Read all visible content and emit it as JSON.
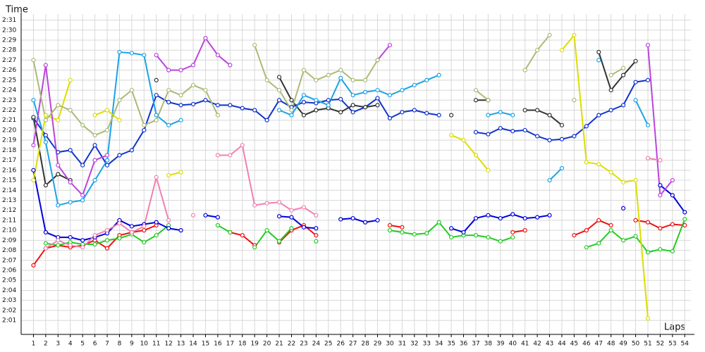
{
  "chart_data": {
    "type": "line",
    "y_title": "Time",
    "x_title": "Laps",
    "grid": true,
    "x": [
      1,
      2,
      3,
      4,
      5,
      6,
      7,
      8,
      9,
      10,
      11,
      12,
      13,
      14,
      15,
      16,
      17,
      18,
      19,
      20,
      21,
      22,
      23,
      24,
      25,
      26,
      27,
      28,
      29,
      30,
      31,
      32,
      33,
      34,
      35,
      36,
      37,
      38,
      39,
      40,
      41,
      42,
      43,
      44,
      45,
      46,
      47,
      48,
      49,
      50,
      51,
      52,
      53,
      54
    ],
    "xlim": [
      0,
      54.5
    ],
    "ylim": [
      119.6,
      151.6
    ],
    "yticks": [
      {
        "value": 121,
        "label": "2:01"
      },
      {
        "value": 122,
        "label": "2:02"
      },
      {
        "value": 123,
        "label": "2:03"
      },
      {
        "value": 124,
        "label": "2:04"
      },
      {
        "value": 125,
        "label": "2:05"
      },
      {
        "value": 126,
        "label": "2:06"
      },
      {
        "value": 127,
        "label": "2:07"
      },
      {
        "value": 128,
        "label": "2:08"
      },
      {
        "value": 129,
        "label": "2:09"
      },
      {
        "value": 130,
        "label": "2:10"
      },
      {
        "value": 131,
        "label": "2:11"
      },
      {
        "value": 132,
        "label": "2:12"
      },
      {
        "value": 133,
        "label": "2:13"
      },
      {
        "value": 134,
        "label": "2:14"
      },
      {
        "value": 135,
        "label": "2:15"
      },
      {
        "value": 136,
        "label": "2:16"
      },
      {
        "value": 137,
        "label": "2:17"
      },
      {
        "value": 138,
        "label": "2:18"
      },
      {
        "value": 139,
        "label": "2:19"
      },
      {
        "value": 140,
        "label": "2:20"
      },
      {
        "value": 141,
        "label": "2:21"
      },
      {
        "value": 142,
        "label": "2:22"
      },
      {
        "value": 143,
        "label": "2:23"
      },
      {
        "value": 144,
        "label": "2:24"
      },
      {
        "value": 145,
        "label": "2:25"
      },
      {
        "value": 146,
        "label": "2:26"
      },
      {
        "value": 147,
        "label": "2:27"
      },
      {
        "value": 148,
        "label": "2:28"
      },
      {
        "value": 149,
        "label": "2:29"
      },
      {
        "value": 150,
        "label": "2:30"
      },
      {
        "value": 151,
        "label": "2:31"
      }
    ],
    "series": [
      {
        "color": "#ee1111",
        "values": [
          126.5,
          128.2,
          128.5,
          128.3,
          128.5,
          129,
          128.2,
          129.5,
          129.8,
          130,
          130.5,
          null,
          null,
          null,
          null,
          null,
          129.8,
          129.5,
          128.5,
          null,
          128.8,
          130,
          130.5,
          129.5,
          null,
          null,
          null,
          null,
          null,
          130.5,
          130.3,
          null,
          null,
          null,
          null,
          null,
          null,
          null,
          null,
          129.8,
          130,
          null,
          null,
          null,
          129.5,
          130,
          131,
          130.5,
          null,
          131,
          130.8,
          130.2,
          130.6,
          130.5
        ]
      },
      {
        "color": "#22cc22",
        "values": [
          null,
          128.7,
          128.5,
          128.8,
          128.6,
          128.6,
          129,
          129.2,
          129.6,
          128.8,
          129.5,
          130.5,
          null,
          null,
          null,
          130.5,
          129.8,
          null,
          128.3,
          130,
          128.9,
          130.2,
          null,
          128.9,
          null,
          null,
          null,
          null,
          null,
          130,
          129.8,
          129.6,
          129.7,
          130.8,
          129.3,
          129.5,
          129.5,
          129.3,
          128.9,
          129.3,
          null,
          null,
          null,
          null,
          null,
          128.3,
          128.7,
          130,
          129,
          129.4,
          127.8,
          128.1,
          127.9,
          131.1
        ]
      },
      {
        "color": "#0000dd",
        "values": [
          136,
          129.8,
          129.3,
          129.3,
          129,
          129.3,
          129.7,
          131,
          130.4,
          130.6,
          130.8,
          130.2,
          130,
          null,
          131.5,
          131.3,
          null,
          null,
          null,
          null,
          131.4,
          131.3,
          130.3,
          130.2,
          null,
          131.1,
          131.2,
          130.8,
          131,
          null,
          null,
          null,
          null,
          null,
          130.2,
          129.8,
          131.2,
          131.5,
          131.2,
          131.6,
          131.2,
          131.3,
          131.5,
          null,
          null,
          null,
          null,
          null,
          132.2,
          null,
          null,
          134.5,
          133.5,
          131.8
        ]
      },
      {
        "color": "#1133cc",
        "values": [
          141.2,
          139.5,
          137.8,
          138,
          136.5,
          138.5,
          136.5,
          137.5,
          138,
          140,
          143.5,
          142.8,
          142.5,
          142.6,
          143,
          142.5,
          142.5,
          142.2,
          142,
          141,
          143,
          142.3,
          142.8,
          142.7,
          143,
          143.1,
          141.8,
          142.3,
          143.2,
          141.2,
          141.8,
          142,
          141.7,
          141.5,
          null,
          null,
          139.8,
          139.6,
          140.2,
          139.9,
          140,
          139.4,
          139,
          139.1,
          139.4,
          140.4,
          141.5,
          142,
          142.5,
          144.8,
          145,
          null,
          null,
          null
        ]
      },
      {
        "color": "#333333",
        "values": [
          141.3,
          134.5,
          135.6,
          135,
          null,
          null,
          null,
          null,
          null,
          null,
          145,
          null,
          null,
          null,
          null,
          null,
          null,
          null,
          null,
          null,
          145.3,
          143,
          141.5,
          142,
          142.2,
          141.8,
          142.5,
          142.3,
          142.5,
          null,
          null,
          null,
          null,
          null,
          141.5,
          null,
          143,
          143,
          null,
          null,
          142,
          142,
          141.5,
          140.5,
          null,
          null,
          147.8,
          144,
          145.5,
          146.9,
          null,
          null,
          null,
          null
        ]
      },
      {
        "color": "#1aa3e8",
        "values": [
          143,
          138.8,
          132.5,
          132.8,
          133,
          135,
          137,
          147.8,
          147.7,
          147.5,
          141.5,
          140.5,
          141,
          null,
          null,
          null,
          null,
          null,
          null,
          null,
          142,
          141.5,
          143.5,
          143,
          142.5,
          145.2,
          143.5,
          143.8,
          144,
          143.5,
          144,
          144.5,
          145,
          145.5,
          null,
          null,
          null,
          141.5,
          141.8,
          141.5,
          null,
          null,
          135,
          136.2,
          null,
          null,
          147,
          null,
          null,
          143,
          140.5,
          null,
          null,
          null
        ]
      },
      {
        "color": "#dddd00",
        "values": [
          135,
          141.5,
          141,
          145,
          null,
          141.5,
          142,
          141,
          null,
          null,
          null,
          135.5,
          135.8,
          null,
          null,
          null,
          null,
          null,
          null,
          null,
          null,
          null,
          null,
          null,
          null,
          null,
          null,
          null,
          null,
          null,
          null,
          null,
          null,
          null,
          139.5,
          139,
          137.5,
          136,
          null,
          null,
          null,
          null,
          null,
          148,
          149.5,
          136.8,
          136.6,
          135.8,
          134.8,
          135,
          121.2,
          null,
          null,
          null
        ]
      },
      {
        "color": "#bb44dd",
        "values": [
          138.5,
          146.5,
          136.5,
          134.8,
          133.5,
          137,
          137.5,
          null,
          null,
          null,
          147.5,
          146,
          146,
          146.5,
          149.2,
          147.5,
          146.5,
          null,
          null,
          null,
          null,
          null,
          null,
          null,
          null,
          null,
          null,
          null,
          147,
          148.5,
          null,
          null,
          null,
          null,
          null,
          null,
          null,
          null,
          null,
          null,
          null,
          null,
          null,
          null,
          null,
          null,
          null,
          null,
          null,
          null,
          148.5,
          133.5,
          135,
          null
        ]
      },
      {
        "color": "#f080b0",
        "values": [
          null,
          128.2,
          129,
          128.5,
          128.3,
          129.5,
          130,
          130.7,
          129.8,
          130.4,
          135.3,
          131,
          null,
          131.5,
          null,
          137.5,
          137.5,
          138.5,
          132.5,
          132.7,
          132.8,
          132,
          132.3,
          131.5,
          null,
          null,
          null,
          null,
          null,
          null,
          null,
          null,
          null,
          null,
          null,
          null,
          null,
          null,
          null,
          null,
          null,
          null,
          null,
          null,
          null,
          null,
          null,
          null,
          null,
          null,
          137.2,
          137,
          null,
          null
        ]
      },
      {
        "color": "#aabb77",
        "values": [
          147,
          141,
          142.5,
          142,
          140.5,
          139.5,
          140,
          143,
          144,
          140.5,
          141,
          144,
          143.5,
          144.5,
          144,
          141.5,
          null,
          null,
          148.5,
          145,
          144,
          142,
          146,
          145,
          145.5,
          146,
          145,
          145,
          147,
          null,
          null,
          null,
          null,
          null,
          null,
          null,
          144,
          143,
          null,
          null,
          146,
          148,
          149.5,
          null,
          143,
          null,
          null,
          145.5,
          146.2,
          null,
          null,
          null,
          null,
          null
        ]
      }
    ]
  }
}
